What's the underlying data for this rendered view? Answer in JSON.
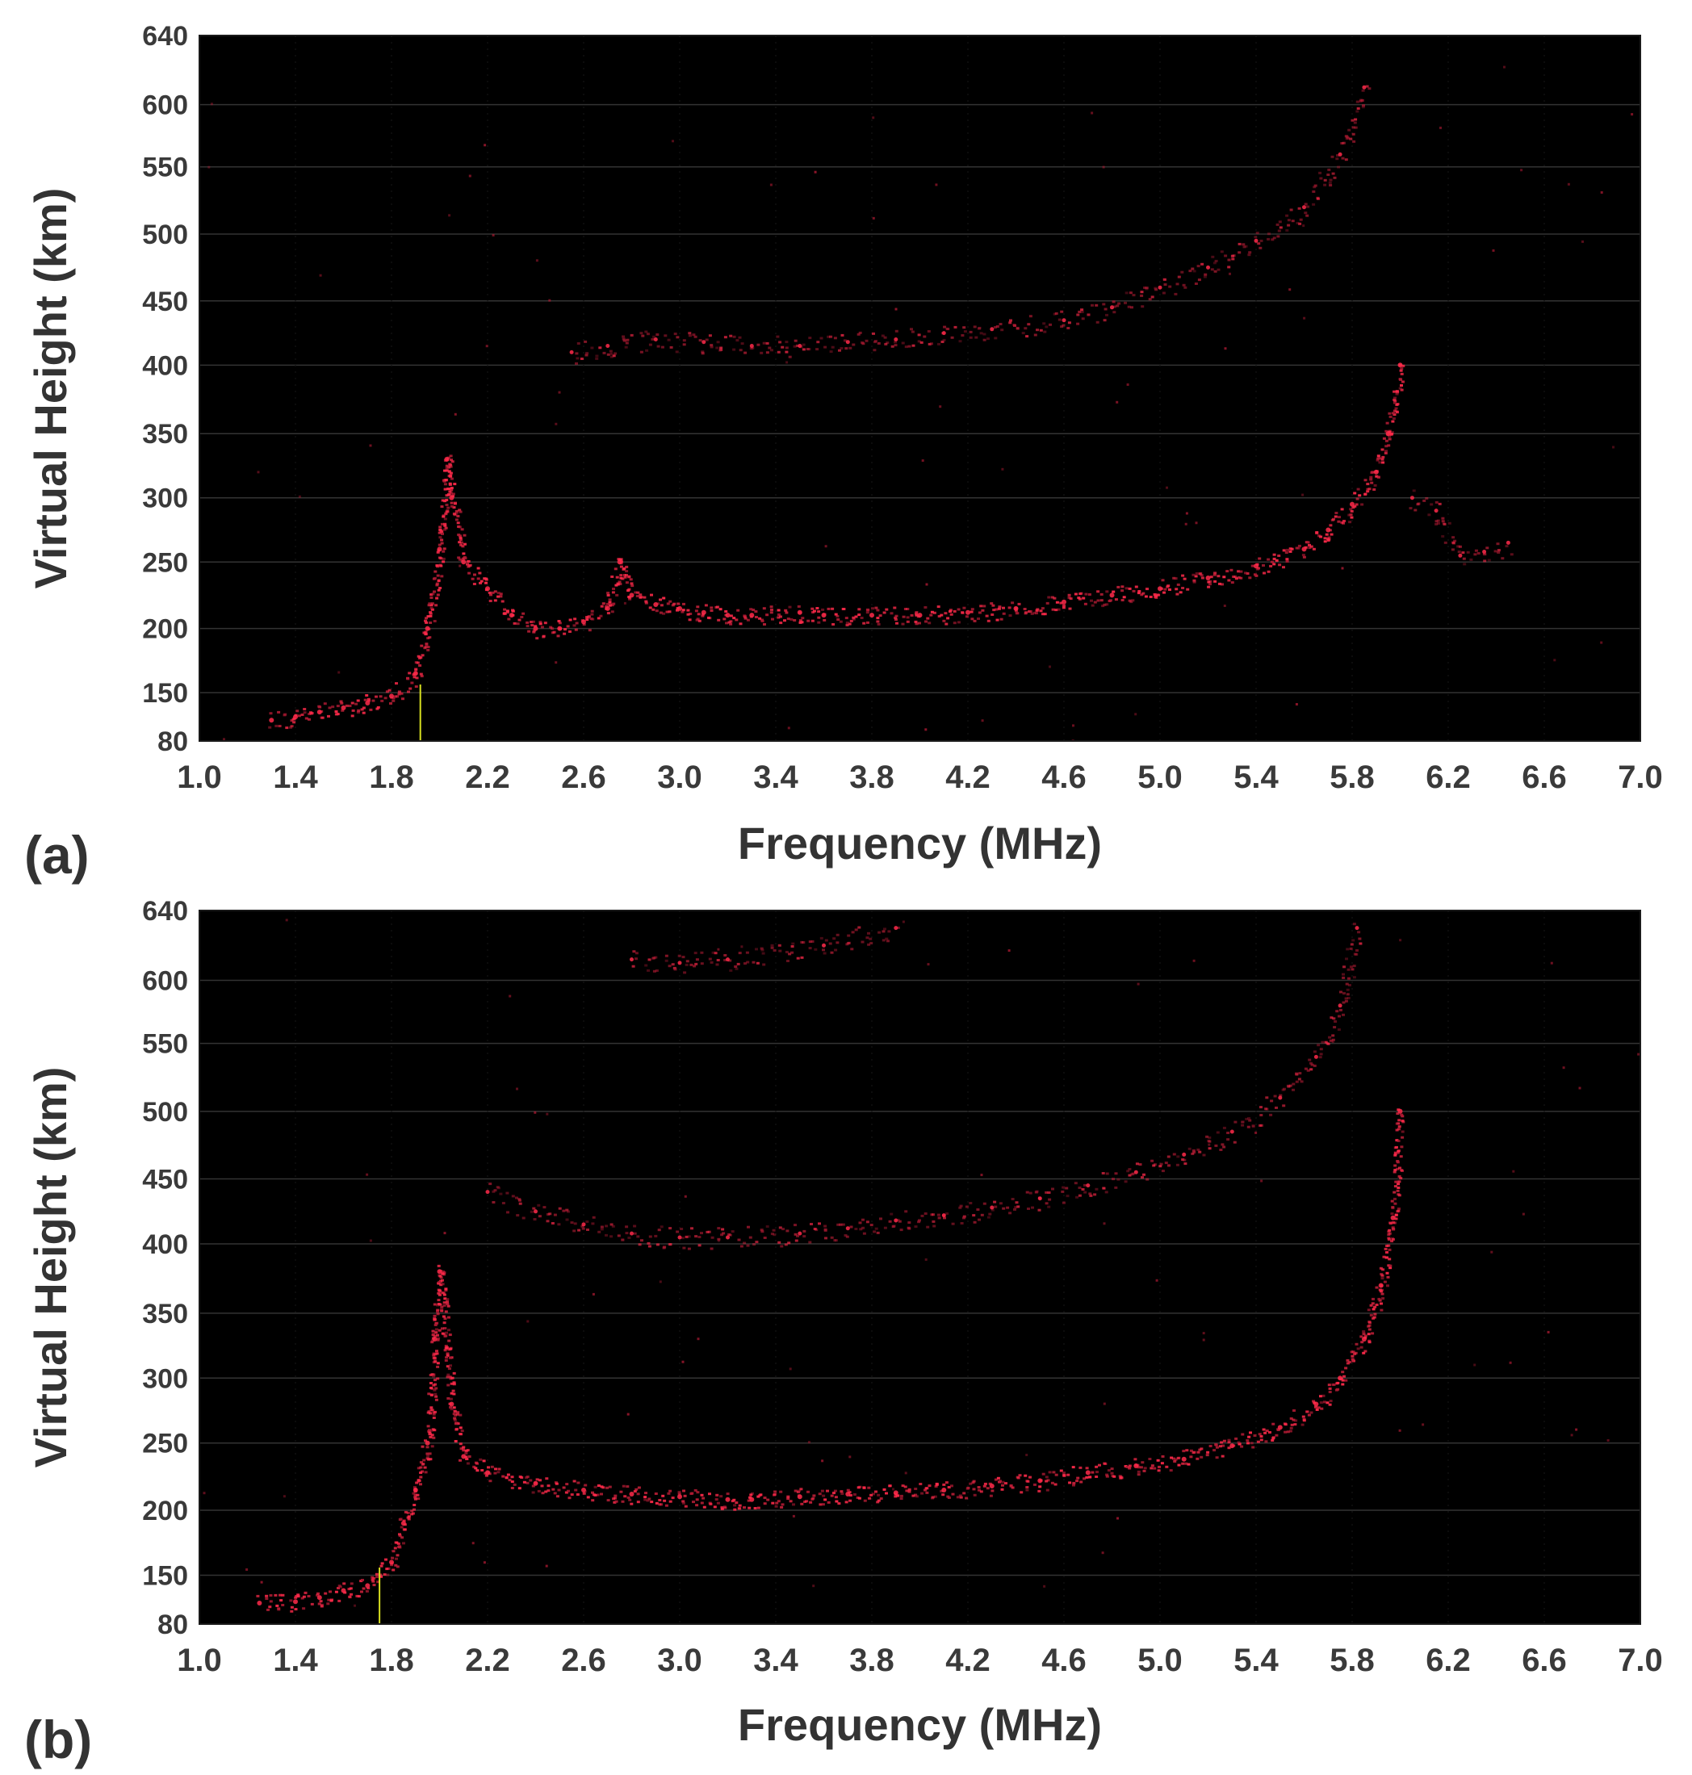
{
  "colors": {
    "plot_background": "#000000",
    "echo": "#ff2a4a",
    "echo_faint": "#b01a33",
    "grid": "#333333",
    "marker": "#d8e020"
  },
  "chart_data": [
    {
      "type": "scatter",
      "panel_label": "(a)",
      "xlabel": "Frequency (MHz)",
      "ylabel": "Virtual Height (km)",
      "xlim": [
        1.0,
        7.0
      ],
      "x_ticks": [
        "1.0",
        "1.4",
        "1.8",
        "2.2",
        "2.6",
        "3.0",
        "3.4",
        "3.8",
        "4.2",
        "4.6",
        "5.0",
        "5.4",
        "5.8",
        "6.2",
        "6.6",
        "7.0"
      ],
      "y_ticks": [
        "80",
        "150",
        "200",
        "250",
        "300",
        "350",
        "400",
        "450",
        "500",
        "550",
        "600",
        "640"
      ],
      "grid": true,
      "series": [
        {
          "values": [
            [
              1.3,
              110
            ],
            [
              1.4,
              115
            ],
            [
              1.5,
              122
            ],
            [
              1.6,
              128
            ],
            [
              1.7,
              135
            ],
            [
              1.8,
              145
            ],
            [
              1.9,
              165
            ],
            [
              1.95,
              200
            ],
            [
              2.0,
              260
            ],
            [
              2.03,
              330
            ],
            [
              2.05,
              300
            ],
            [
              2.1,
              250
            ],
            [
              2.2,
              230
            ],
            [
              2.3,
              210
            ],
            [
              2.4,
              200
            ],
            [
              2.5,
              200
            ],
            [
              2.6,
              205
            ],
            [
              2.7,
              215
            ],
            [
              2.75,
              250
            ],
            [
              2.8,
              225
            ],
            [
              2.9,
              218
            ],
            [
              3.0,
              215
            ],
            [
              3.1,
              212
            ],
            [
              3.2,
              210
            ],
            [
              3.3,
              210
            ],
            [
              3.5,
              212
            ],
            [
              3.6,
              210
            ],
            [
              3.8,
              210
            ],
            [
              4.0,
              210
            ],
            [
              4.2,
              212
            ],
            [
              4.4,
              215
            ],
            [
              4.6,
              220
            ],
            [
              4.8,
              225
            ],
            [
              5.0,
              230
            ],
            [
              5.2,
              238
            ],
            [
              5.4,
              247
            ],
            [
              5.6,
              260
            ],
            [
              5.7,
              275
            ],
            [
              5.8,
              295
            ],
            [
              5.9,
              320
            ],
            [
              5.95,
              350
            ],
            [
              6.0,
              400
            ]
          ]
        },
        {
          "values": [
            [
              2.55,
              410
            ],
            [
              2.7,
              415
            ],
            [
              2.9,
              420
            ],
            [
              3.1,
              418
            ],
            [
              3.3,
              415
            ],
            [
              3.5,
              415
            ],
            [
              3.7,
              418
            ],
            [
              3.9,
              420
            ],
            [
              4.1,
              425
            ],
            [
              4.3,
              428
            ],
            [
              4.6,
              435
            ],
            [
              4.8,
              445
            ],
            [
              5.0,
              460
            ],
            [
              5.2,
              475
            ],
            [
              5.4,
              495
            ],
            [
              5.6,
              520
            ],
            [
              5.75,
              560
            ],
            [
              5.85,
              610
            ]
          ]
        },
        {
          "values": [
            [
              6.05,
              300
            ],
            [
              6.15,
              290
            ],
            [
              6.25,
              255
            ],
            [
              6.35,
              258
            ],
            [
              6.45,
              265
            ]
          ]
        }
      ],
      "marker": {
        "x": 1.92,
        "label": ""
      }
    },
    {
      "type": "scatter",
      "panel_label": "(b)",
      "xlabel": "Frequency (MHz)",
      "ylabel": "Virtual Height (km)",
      "xlim": [
        1.0,
        7.0
      ],
      "x_ticks": [
        "1.0",
        "1.4",
        "1.8",
        "2.2",
        "2.6",
        "3.0",
        "3.4",
        "3.8",
        "4.2",
        "4.6",
        "5.0",
        "5.4",
        "5.8",
        "6.2",
        "6.6",
        "7.0"
      ],
      "y_ticks": [
        "80",
        "150",
        "200",
        "250",
        "300",
        "350",
        "400",
        "450",
        "500",
        "550",
        "600",
        "640"
      ],
      "grid": true,
      "series": [
        {
          "values": [
            [
              1.25,
              110
            ],
            [
              1.4,
              112
            ],
            [
              1.5,
              118
            ],
            [
              1.6,
              128
            ],
            [
              1.7,
              135
            ],
            [
              1.8,
              160
            ],
            [
              1.85,
              190
            ],
            [
              1.9,
              215
            ],
            [
              1.95,
              250
            ],
            [
              1.98,
              330
            ],
            [
              2.0,
              380
            ],
            [
              2.05,
              280
            ],
            [
              2.1,
              240
            ],
            [
              2.2,
              228
            ],
            [
              2.4,
              220
            ],
            [
              2.6,
              215
            ],
            [
              2.8,
              212
            ],
            [
              3.0,
              210
            ],
            [
              3.2,
              208
            ],
            [
              3.3,
              208
            ],
            [
              3.5,
              210
            ],
            [
              3.7,
              212
            ],
            [
              3.9,
              213
            ],
            [
              4.1,
              215
            ],
            [
              4.3,
              218
            ],
            [
              4.5,
              222
            ],
            [
              4.7,
              228
            ],
            [
              4.9,
              233
            ],
            [
              5.1,
              238
            ],
            [
              5.3,
              248
            ],
            [
              5.5,
              262
            ],
            [
              5.65,
              280
            ],
            [
              5.75,
              300
            ],
            [
              5.85,
              330
            ],
            [
              5.92,
              370
            ],
            [
              5.97,
              420
            ],
            [
              6.0,
              500
            ]
          ]
        },
        {
          "values": [
            [
              2.2,
              440
            ],
            [
              2.4,
              425
            ],
            [
              2.6,
              415
            ],
            [
              2.8,
              408
            ],
            [
              3.0,
              405
            ],
            [
              3.2,
              405
            ],
            [
              3.5,
              408
            ],
            [
              3.7,
              412
            ],
            [
              3.9,
              418
            ],
            [
              4.1,
              422
            ],
            [
              4.3,
              428
            ],
            [
              4.5,
              435
            ],
            [
              4.7,
              445
            ],
            [
              4.9,
              455
            ],
            [
              5.1,
              468
            ],
            [
              5.3,
              485
            ],
            [
              5.5,
              510
            ],
            [
              5.65,
              540
            ],
            [
              5.75,
              580
            ],
            [
              5.82,
              630
            ]
          ]
        },
        {
          "values": [
            [
              2.8,
              612
            ],
            [
              3.0,
              610
            ],
            [
              3.2,
              612
            ],
            [
              3.6,
              620
            ],
            [
              3.9,
              630
            ]
          ]
        }
      ],
      "marker": {
        "x": 1.75,
        "label": ""
      }
    }
  ]
}
